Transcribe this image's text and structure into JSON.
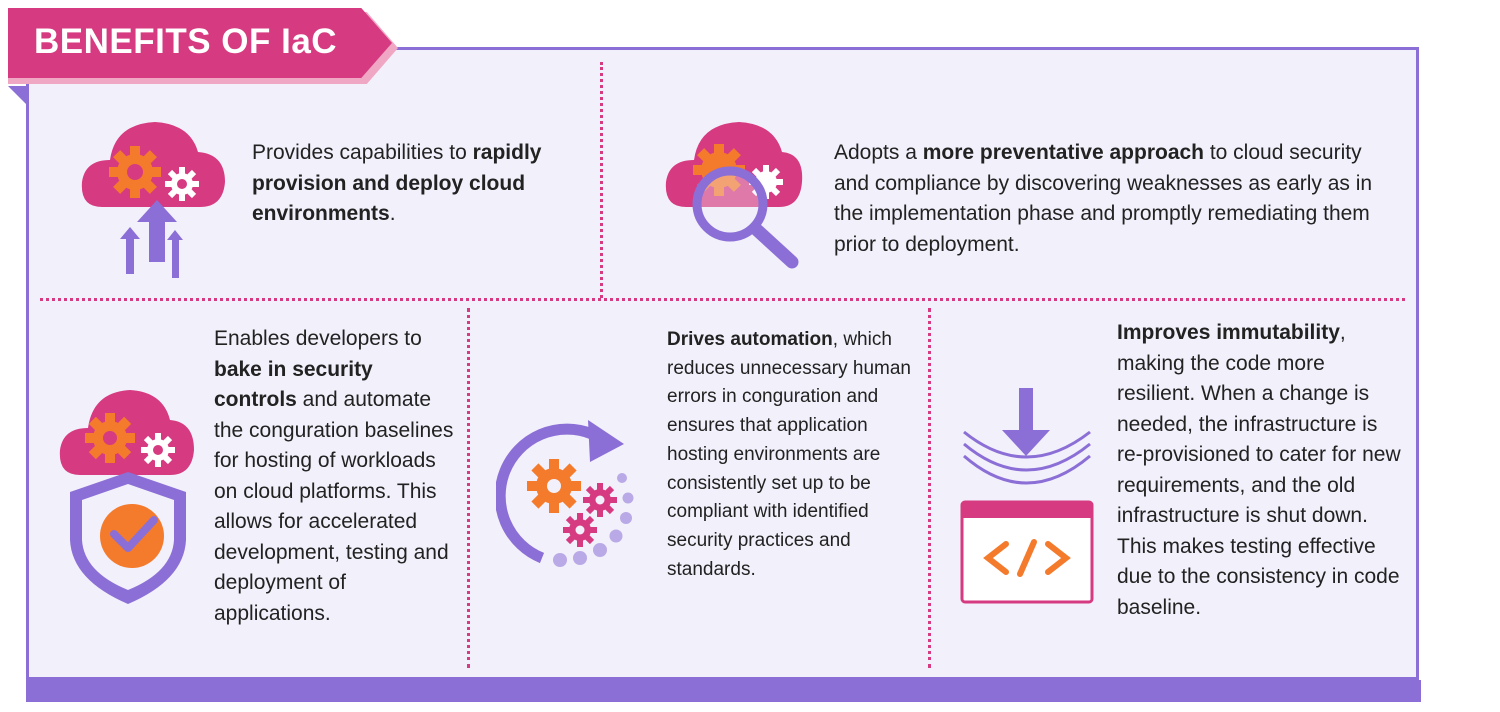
{
  "banner": {
    "title": "BENEFITS OF IaC"
  },
  "colors": {
    "accent_pink": "#d63a80",
    "accent_purple": "#8b6fd6",
    "accent_orange": "#f47a2c",
    "panel_bg": "#f2f0fa"
  },
  "benefits": [
    {
      "icon": "cloud-upload-gears-icon",
      "pre": "Provides capabilities to ",
      "bold": "rapidly provision and deploy cloud environments",
      "post": "."
    },
    {
      "icon": "cloud-magnifier-icon",
      "pre": "Adopts a ",
      "bold": "more preventative approach",
      "post": " to cloud security and compliance by discovering weaknesses as early as in the implementation phase and promptly remediating them prior to deployment."
    },
    {
      "icon": "cloud-shield-check-icon",
      "pre": "Enables developers to ",
      "bold": "bake in security controls",
      "post": " and automate the conguration baselines for hosting of workloads on cloud platforms. This allows for accelerated development, testing and deployment of applications."
    },
    {
      "icon": "automation-gears-icon",
      "pre": "",
      "bold": "Drives automation",
      "post": ", which reduces unnecessary human errors in conguration and ensures that application hosting environments are consistently set up to be compliant with identified security practices and standards."
    },
    {
      "icon": "code-window-download-icon",
      "pre": "",
      "bold": "Improves immutability",
      "post": ", making the code more resilient. When a change is needed, the infrastructure is re-provisioned to cater for new requirements, and the old infrastructure is shut down. This makes testing effective due to the consistency in code baseline."
    }
  ]
}
